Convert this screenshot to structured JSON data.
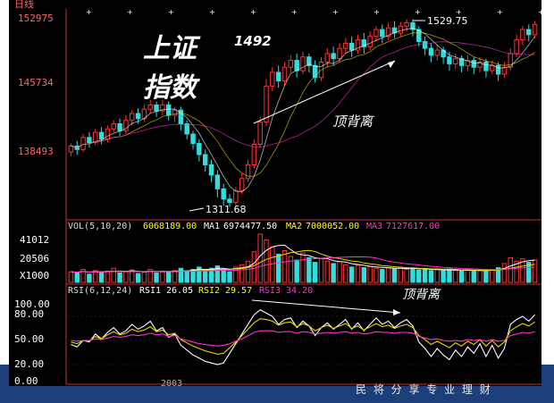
{
  "header": {
    "period_label": "日线",
    "price_ticks": [
      "152975",
      "145734",
      "138493"
    ]
  },
  "overlay": {
    "title_line1": "上证",
    "title_line2": "指数",
    "peak_label": "1492",
    "divergence_label": "顶背离",
    "divergence_label_rsi": "顶背离",
    "high_label": "1529.75",
    "low_label": "1311.68"
  },
  "volume_panel": {
    "header_prefix": "VOL(5,10,20)",
    "vol_value": "6068189.00",
    "ma1_label": "MA1",
    "ma1_value": "6974477.50",
    "ma2_label": "MA2",
    "ma2_value": "7000052.00",
    "ma3_label": "MA3",
    "ma3_value": "7127617.00",
    "ticks": [
      "41012",
      "20506",
      "X1000"
    ]
  },
  "rsi_panel": {
    "header_prefix": "RSI(6,12,24)",
    "rsi1_label": "RSI1",
    "rsi1_value": "26.05",
    "rsi2_label": "RSI2",
    "rsi2_value": "29.57",
    "rsi3_label": "RSI3",
    "rsi3_value": "34.20",
    "ticks": [
      "100.00",
      "80.00",
      "50.00",
      "20.00",
      "0.00"
    ]
  },
  "footer": {
    "year_label": "2003",
    "slogan": "民 将 分 享 专 业 理 财"
  },
  "colors": {
    "up": "#ff3333",
    "down": "#33dddd",
    "axis": "#c03030",
    "tick_text": "#ff6666",
    "white_line": "#ffffff",
    "yellow_line": "#e8d800",
    "magenta_line": "#ff33cc",
    "footer_bg": "#1a3f7a"
  },
  "chart_data": [
    {
      "type": "candlestick",
      "title": "",
      "ylim": [
        1300,
        1540
      ],
      "y_ticks": [
        1529.75,
        1457.34,
        1384.93
      ],
      "candles": [
        [
          1375,
          1382,
          1370,
          1385
        ],
        [
          1382,
          1378,
          1372,
          1388
        ],
        [
          1378,
          1392,
          1375,
          1396
        ],
        [
          1392,
          1386,
          1380,
          1398
        ],
        [
          1386,
          1398,
          1383,
          1402
        ],
        [
          1398,
          1390,
          1384,
          1404
        ],
        [
          1390,
          1402,
          1386,
          1406
        ],
        [
          1402,
          1408,
          1398,
          1412
        ],
        [
          1408,
          1400,
          1394,
          1414
        ],
        [
          1400,
          1412,
          1396,
          1418
        ],
        [
          1412,
          1420,
          1406,
          1424
        ],
        [
          1420,
          1414,
          1408,
          1426
        ],
        [
          1414,
          1425,
          1410,
          1430
        ],
        [
          1425,
          1430,
          1420,
          1436
        ],
        [
          1430,
          1423,
          1416,
          1434
        ],
        [
          1423,
          1430,
          1418,
          1436
        ],
        [
          1430,
          1418,
          1412,
          1434
        ],
        [
          1418,
          1424,
          1410,
          1428
        ],
        [
          1424,
          1408,
          1400,
          1428
        ],
        [
          1408,
          1396,
          1390,
          1412
        ],
        [
          1396,
          1385,
          1378,
          1400
        ],
        [
          1385,
          1372,
          1364,
          1390
        ],
        [
          1372,
          1360,
          1352,
          1378
        ],
        [
          1360,
          1348,
          1340,
          1366
        ],
        [
          1348,
          1332,
          1322,
          1354
        ],
        [
          1332,
          1320,
          1312,
          1338
        ],
        [
          1320,
          1316,
          1311,
          1326
        ],
        [
          1316,
          1330,
          1312,
          1334
        ],
        [
          1330,
          1344,
          1326,
          1350
        ],
        [
          1344,
          1360,
          1340,
          1366
        ],
        [
          1360,
          1384,
          1356,
          1390
        ],
        [
          1384,
          1410,
          1380,
          1416
        ],
        [
          1410,
          1452,
          1405,
          1460
        ],
        [
          1452,
          1468,
          1446,
          1474
        ],
        [
          1468,
          1458,
          1450,
          1476
        ],
        [
          1458,
          1474,
          1452,
          1480
        ],
        [
          1474,
          1482,
          1468,
          1488
        ],
        [
          1482,
          1470,
          1462,
          1490
        ],
        [
          1470,
          1486,
          1466,
          1492
        ],
        [
          1486,
          1476,
          1468,
          1490
        ],
        [
          1476,
          1462,
          1456,
          1482
        ],
        [
          1462,
          1480,
          1458,
          1486
        ],
        [
          1480,
          1490,
          1474,
          1496
        ],
        [
          1490,
          1484,
          1476,
          1498
        ],
        [
          1484,
          1496,
          1480,
          1502
        ],
        [
          1496,
          1502,
          1490,
          1508
        ],
        [
          1502,
          1494,
          1486,
          1510
        ],
        [
          1494,
          1506,
          1490,
          1512
        ],
        [
          1506,
          1498,
          1490,
          1514
        ],
        [
          1498,
          1510,
          1494,
          1516
        ],
        [
          1510,
          1518,
          1504,
          1522
        ],
        [
          1518,
          1510,
          1502,
          1524
        ],
        [
          1510,
          1520,
          1506,
          1526
        ],
        [
          1520,
          1514,
          1508,
          1528
        ],
        [
          1514,
          1522,
          1510,
          1527
        ],
        [
          1522,
          1526,
          1516,
          1530
        ],
        [
          1526,
          1518,
          1510,
          1530
        ],
        [
          1518,
          1504,
          1498,
          1522
        ],
        [
          1504,
          1496,
          1488,
          1510
        ],
        [
          1496,
          1488,
          1480,
          1502
        ],
        [
          1488,
          1494,
          1482,
          1500
        ],
        [
          1494,
          1486,
          1478,
          1498
        ],
        [
          1486,
          1478,
          1470,
          1492
        ],
        [
          1478,
          1484,
          1472,
          1490
        ],
        [
          1484,
          1476,
          1468,
          1488
        ],
        [
          1476,
          1482,
          1470,
          1488
        ],
        [
          1482,
          1474,
          1466,
          1486
        ],
        [
          1474,
          1480,
          1468,
          1486
        ],
        [
          1480,
          1470,
          1462,
          1484
        ],
        [
          1470,
          1476,
          1466,
          1482
        ],
        [
          1476,
          1466,
          1458,
          1480
        ],
        [
          1466,
          1474,
          1462,
          1480
        ],
        [
          1474,
          1490,
          1470,
          1496
        ],
        [
          1490,
          1506,
          1486,
          1512
        ],
        [
          1506,
          1518,
          1500,
          1522
        ],
        [
          1518,
          1512,
          1504,
          1524
        ],
        [
          1512,
          1524,
          1508,
          1528
        ]
      ]
    },
    {
      "type": "bar",
      "title": "",
      "ylim": [
        0,
        41012
      ],
      "unit": "X1000",
      "values": [
        9000,
        8000,
        11000,
        7000,
        10000,
        8500,
        9500,
        12000,
        8000,
        9000,
        10500,
        7500,
        9000,
        11000,
        8000,
        9500,
        8500,
        10000,
        12000,
        9000,
        11000,
        13000,
        10000,
        12000,
        14000,
        11000,
        9000,
        13000,
        15000,
        18000,
        26000,
        41000,
        36000,
        30000,
        24000,
        27000,
        22000,
        19000,
        25000,
        21000,
        17000,
        20000,
        18000,
        16000,
        17500,
        15000,
        13000,
        14500,
        12500,
        13500,
        12000,
        11000,
        12500,
        11500,
        13000,
        11000,
        12000,
        10500,
        11500,
        10000,
        10800,
        9800,
        11200,
        10200,
        9500,
        10600,
        9900,
        10400,
        9600,
        10900,
        12500,
        16000,
        21000,
        18000,
        20000,
        17000,
        19000
      ]
    },
    {
      "type": "line",
      "title": "",
      "ylim": [
        0,
        100
      ],
      "y_ticks": [
        100,
        80,
        50,
        20,
        0
      ],
      "series": [
        {
          "name": "RSI1",
          "values": [
            45,
            42,
            50,
            48,
            58,
            52,
            60,
            66,
            58,
            62,
            70,
            64,
            68,
            74,
            62,
            66,
            54,
            58,
            44,
            38,
            32,
            28,
            24,
            22,
            20,
            22,
            34,
            46,
            58,
            70,
            82,
            88,
            84,
            80,
            70,
            76,
            78,
            66,
            74,
            68,
            56,
            66,
            72,
            64,
            70,
            76,
            64,
            72,
            62,
            70,
            78,
            70,
            74,
            66,
            72,
            76,
            68,
            48,
            40,
            30,
            40,
            32,
            26,
            38,
            30,
            42,
            34,
            46,
            30,
            44,
            28,
            40,
            70,
            76,
            80,
            74,
            82
          ]
        },
        {
          "name": "RSI2",
          "values": [
            48,
            46,
            50,
            49,
            55,
            52,
            57,
            61,
            57,
            59,
            64,
            61,
            63,
            67,
            61,
            63,
            57,
            59,
            51,
            47,
            43,
            40,
            37,
            35,
            33,
            34,
            41,
            48,
            56,
            64,
            72,
            77,
            76,
            74,
            69,
            72,
            73,
            67,
            71,
            68,
            62,
            66,
            69,
            65,
            68,
            71,
            65,
            68,
            63,
            67,
            71,
            67,
            69,
            65,
            68,
            70,
            66,
            56,
            51,
            45,
            49,
            45,
            41,
            47,
            43,
            49,
            45,
            51,
            43,
            50,
            42,
            48,
            62,
            67,
            71,
            68,
            73
          ]
        },
        {
          "name": "RSI3",
          "values": [
            50,
            49,
            50,
            50,
            52,
            51,
            53,
            55,
            54,
            55,
            57,
            56,
            57,
            59,
            57,
            58,
            55,
            56,
            52,
            50,
            48,
            46,
            45,
            44,
            43,
            44,
            46,
            49,
            52,
            56,
            60,
            62,
            62,
            62,
            60,
            61,
            61,
            59,
            61,
            60,
            58,
            59,
            60,
            59,
            60,
            61,
            59,
            60,
            58,
            59,
            61,
            60,
            60,
            59,
            60,
            60,
            59,
            55,
            53,
            51,
            52,
            50,
            49,
            50,
            49,
            51,
            50,
            51,
            49,
            51,
            49,
            50,
            56,
            58,
            60,
            59,
            61
          ]
        }
      ]
    }
  ]
}
